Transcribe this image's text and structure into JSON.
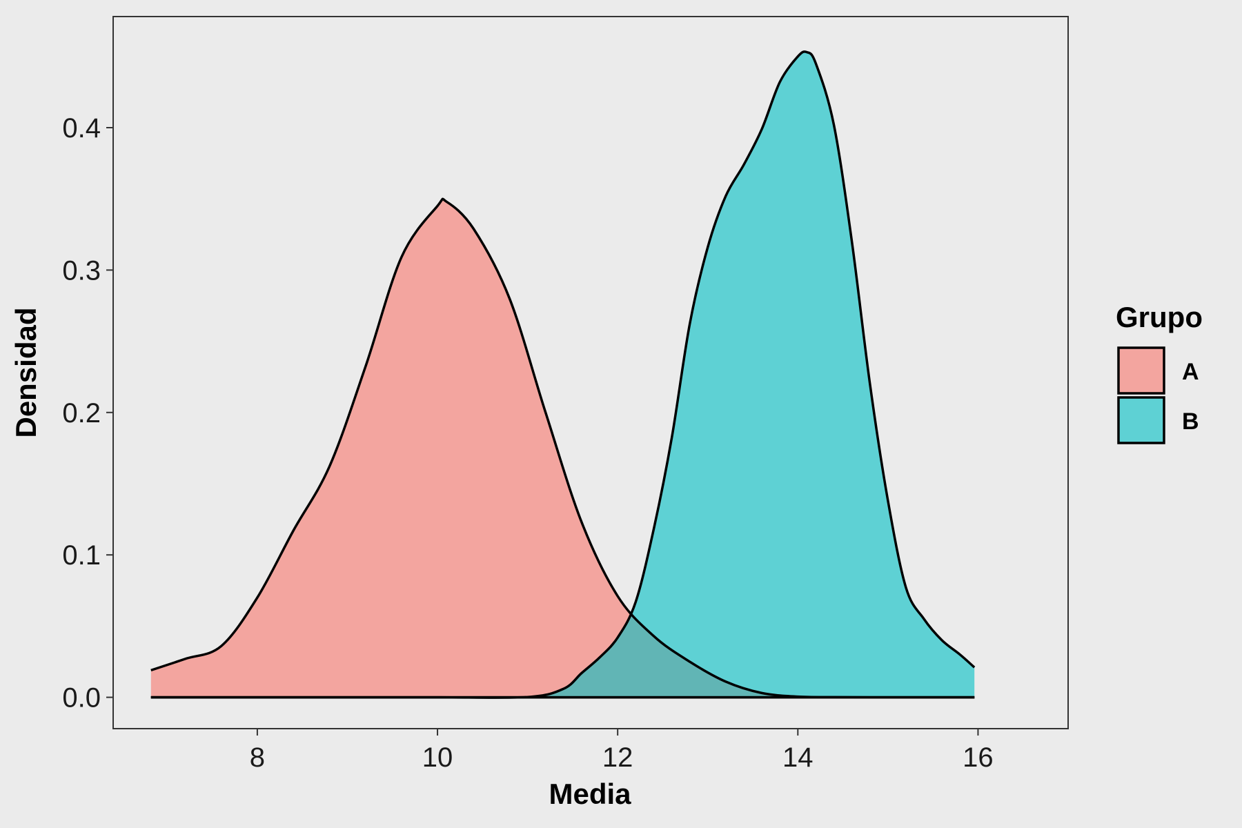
{
  "chart_data": {
    "type": "area",
    "xlabel": "Media",
    "ylabel": "Densidad",
    "xlim": [
      6.4,
      17.0
    ],
    "ylim": [
      -0.022,
      0.478
    ],
    "x_ticks": [
      8,
      10,
      12,
      14,
      16
    ],
    "x_tick_labels": [
      "8",
      "10",
      "12",
      "14",
      "16"
    ],
    "y_ticks": [
      0.0,
      0.1,
      0.2,
      0.3,
      0.4
    ],
    "y_tick_labels": [
      "0.0",
      "0.1",
      "0.2",
      "0.3",
      "0.4"
    ],
    "grid": false,
    "legend": {
      "title": "Grupo",
      "position": "right"
    },
    "series": [
      {
        "name": "A",
        "color": "#F8766D",
        "x": [
          6.82,
          7.2,
          7.6,
          8.0,
          8.4,
          8.8,
          9.2,
          9.6,
          10.0,
          10.1,
          10.4,
          10.8,
          11.2,
          11.6,
          12.0,
          12.4,
          12.8,
          13.2,
          13.6,
          14.0,
          14.4,
          14.8,
          15.2,
          15.6,
          15.96
        ],
        "values": [
          0.019,
          0.027,
          0.036,
          0.07,
          0.117,
          0.162,
          0.232,
          0.309,
          0.345,
          0.348,
          0.329,
          0.28,
          0.2,
          0.123,
          0.071,
          0.043,
          0.025,
          0.011,
          0.003,
          0.0005,
          0.0001,
          0.0,
          0.0,
          0.0,
          0.0
        ]
      },
      {
        "name": "B",
        "color": "#00BFC4",
        "x": [
          6.82,
          8.0,
          9.0,
          10.0,
          11.0,
          11.4,
          11.6,
          11.8,
          12.0,
          12.2,
          12.4,
          12.6,
          12.8,
          13.0,
          13.2,
          13.4,
          13.6,
          13.8,
          14.0,
          14.1,
          14.2,
          14.4,
          14.6,
          14.8,
          15.0,
          15.2,
          15.4,
          15.6,
          15.8,
          15.96
        ],
        "values": [
          0.0,
          0.0,
          0.0,
          0.0,
          0.0002,
          0.006,
          0.017,
          0.028,
          0.042,
          0.067,
          0.118,
          0.182,
          0.262,
          0.316,
          0.352,
          0.374,
          0.399,
          0.432,
          0.45,
          0.453,
          0.445,
          0.402,
          0.32,
          0.22,
          0.138,
          0.077,
          0.055,
          0.04,
          0.03,
          0.021
        ]
      }
    ]
  }
}
